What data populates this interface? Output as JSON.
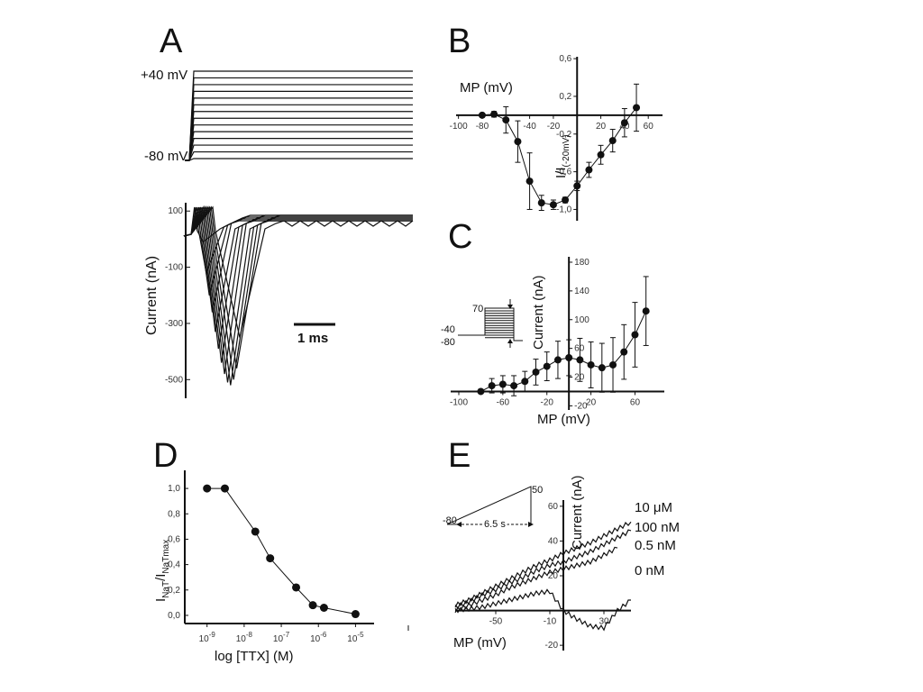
{
  "chart_data": [
    {
      "id": "A",
      "type": "line",
      "panel_label": "A",
      "protocol": {
        "labels": [
          "+40 mV",
          "-80 mV"
        ],
        "steps": 14
      },
      "currents": {
        "ylabel": "Current (nA)",
        "yticks": [
          "100",
          "-100",
          "-300",
          "-500"
        ],
        "yticks_values": [
          100,
          -100,
          -300,
          -500
        ],
        "ylim": [
          -560,
          120
        ],
        "scale_bar": "1 ms",
        "peaks_nA": [
          -10,
          -120,
          -200,
          -260,
          -330,
          -390,
          -440,
          -480,
          -510,
          -520,
          -500,
          -460,
          -350
        ]
      }
    },
    {
      "id": "B",
      "type": "scatter",
      "panel_label": "B",
      "xlabel": "MP (mV)",
      "ylabel_main": "I/I",
      "ylabel_sub": "(-20mV)",
      "xticks": [
        "-100",
        "-80",
        "-40",
        "-20",
        "20",
        "40",
        "60"
      ],
      "xticks_values": [
        -100,
        -80,
        -40,
        -20,
        20,
        40,
        60
      ],
      "yticks": [
        "0,6",
        "0,2",
        "-0,2",
        "-0,6",
        "-1,0"
      ],
      "yticks_values": [
        0.6,
        0.2,
        -0.2,
        -0.6,
        -1.0
      ],
      "xlim": [
        -102,
        72
      ],
      "ylim": [
        -1.12,
        0.62
      ],
      "x": [
        -80,
        -70,
        -60,
        -50,
        -40,
        -30,
        -20,
        -10,
        0,
        10,
        20,
        30,
        40,
        50
      ],
      "y": [
        0,
        0.01,
        -0.05,
        -0.28,
        -0.7,
        -0.93,
        -0.95,
        -0.9,
        -0.75,
        -0.58,
        -0.42,
        -0.27,
        -0.08,
        0.08
      ],
      "err": [
        0,
        0.03,
        0.14,
        0.22,
        0.3,
        0.08,
        0.05,
        0.03,
        0.05,
        0.08,
        0.1,
        0.12,
        0.15,
        0.25
      ]
    },
    {
      "id": "C",
      "type": "scatter",
      "panel_label": "C",
      "xlabel": "MP (mV)",
      "ylabel": "Current (nA)",
      "xticks": [
        "-100",
        "-60",
        "-20",
        "20",
        "60"
      ],
      "xticks_values": [
        -100,
        -60,
        -20,
        20,
        60
      ],
      "yticks": [
        "180",
        "140",
        "100",
        "60",
        "20",
        "-20"
      ],
      "yticks_values": [
        180,
        140,
        100,
        60,
        20,
        -20
      ],
      "xlim": [
        -100,
        85
      ],
      "ylim": [
        -22,
        185
      ],
      "inset_labels": [
        "70",
        "-40",
        "-80"
      ],
      "x": [
        -80,
        -70,
        -60,
        -50,
        -40,
        -30,
        -20,
        -10,
        0,
        10,
        20,
        30,
        40,
        50,
        60,
        70
      ],
      "y": [
        0,
        8,
        10,
        8,
        14,
        27,
        35,
        44,
        47,
        44,
        37,
        33,
        37,
        55,
        79,
        112
      ],
      "err": [
        0,
        10,
        12,
        14,
        14,
        18,
        20,
        26,
        25,
        30,
        32,
        34,
        38,
        38,
        45,
        48
      ]
    },
    {
      "id": "D",
      "type": "line",
      "panel_label": "D",
      "xlabel": "log [TTX] (M)",
      "ylabel_parts": [
        "I",
        "NaT",
        "/I",
        "NaT",
        "max"
      ],
      "xticks": [
        "10-9",
        "10-8",
        "10-7",
        "10-6",
        "10-5"
      ],
      "xticks_values": [
        -9,
        -8,
        -7,
        -6,
        -5
      ],
      "yticks": [
        "1,0",
        "0,8",
        "0,6",
        "0,4",
        "0,2",
        "0,0"
      ],
      "yticks_values": [
        1.0,
        0.8,
        0.6,
        0.4,
        0.2,
        0.0
      ],
      "xlim": [
        -9.6,
        -4.5
      ],
      "ylim": [
        -0.05,
        1.1
      ],
      "x": [
        -9,
        -8.52,
        -7.7,
        -7.3,
        -6.6,
        -6.15,
        -5.85,
        -5
      ],
      "y": [
        1.0,
        1.0,
        0.66,
        0.45,
        0.22,
        0.08,
        0.06,
        0.01
      ]
    },
    {
      "id": "E",
      "type": "line",
      "panel_label": "E",
      "xlabel": "MP (mV)",
      "ylabel": "Current (nA)",
      "xticks": [
        "-50",
        "-10",
        "30"
      ],
      "xticks_values": [
        -50,
        -10,
        30
      ],
      "yticks": [
        "60",
        "40",
        "20",
        "-20"
      ],
      "yticks_values": [
        60,
        40,
        20,
        -20
      ],
      "xlim": [
        -80,
        50
      ],
      "ylim": [
        -22,
        62
      ],
      "ramp_labels": [
        "50",
        "-80",
        "6.5 s"
      ],
      "series": [
        {
          "name": "10 μM",
          "x": [
            -80,
            -70,
            -60,
            -50,
            -40,
            -30,
            -20,
            -10,
            0,
            10,
            20,
            30,
            40,
            50
          ],
          "y": [
            3,
            6,
            10,
            14,
            18,
            22,
            26,
            29,
            33,
            36,
            39,
            43,
            47,
            51
          ]
        },
        {
          "name": "100 nM",
          "x": [
            -80,
            -70,
            -60,
            -50,
            -40,
            -30,
            -20,
            -10,
            0,
            10,
            20,
            30,
            40,
            50
          ],
          "y": [
            2,
            5,
            9,
            12,
            16,
            19,
            23,
            26,
            28,
            31,
            34,
            38,
            42,
            46
          ]
        },
        {
          "name": "0.5 nM",
          "x": [
            -80,
            -70,
            -60,
            -50,
            -40,
            -30,
            -20,
            -10,
            0,
            10,
            20,
            30,
            40
          ],
          "y": [
            0,
            3,
            6,
            9,
            13,
            16,
            19,
            22,
            24,
            26,
            28,
            32,
            36
          ]
        },
        {
          "name": "0 nM",
          "x": [
            -80,
            -70,
            -60,
            -50,
            -40,
            -30,
            -20,
            -10,
            0,
            10,
            20,
            30,
            40,
            50
          ],
          "y": [
            0,
            1,
            2,
            4,
            6,
            8,
            10,
            11,
            0,
            -5,
            -9,
            -10,
            0,
            6
          ]
        }
      ]
    }
  ]
}
